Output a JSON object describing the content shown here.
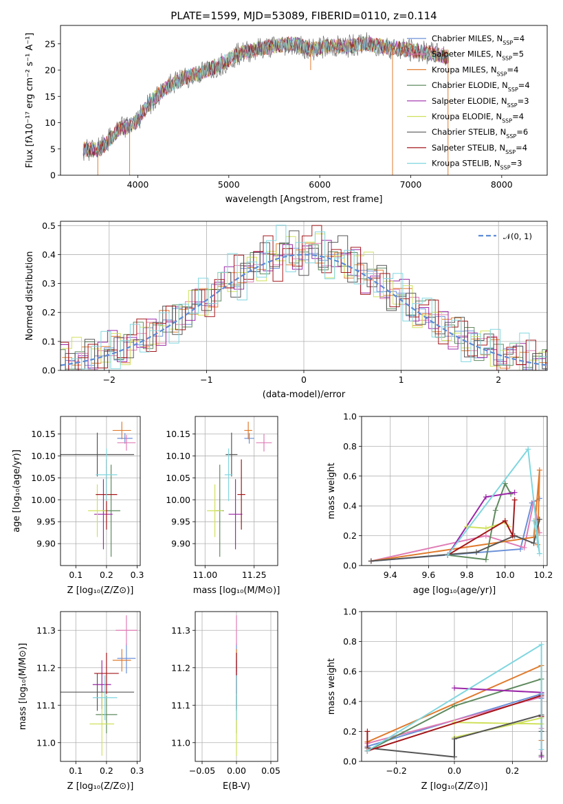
{
  "figure": {
    "title": "PLATE=1599, MJD=53089, FIBERID=0110, z=0.114"
  },
  "colors": {
    "chabrier_miles": "#6a8fd8",
    "salpeter_miles": "#e07bb5",
    "kroupa_miles": "#e07a2c",
    "chabrier_elodie": "#5f8a5f",
    "salpeter_elodie": "#9b27a8",
    "kroupa_elodie": "#cfe05a",
    "chabrier_stelib": "#555555",
    "salpeter_stelib": "#a31518",
    "kroupa_stelib": "#7fd6df"
  },
  "legend_spectrum": [
    {
      "label": "Chabrier MILES, N",
      "sub": "SSP",
      "tail": "=4",
      "color": "#6a8fd8"
    },
    {
      "label": "Salpeter MILES, N",
      "sub": "SSP",
      "tail": "=5",
      "color": "#e07bb5"
    },
    {
      "label": "Kroupa MILES, N",
      "sub": "SSP",
      "tail": "=4",
      "color": "#e07a2c"
    },
    {
      "label": "Chabrier ELODIE, N",
      "sub": "SSP",
      "tail": "=4",
      "color": "#5f8a5f"
    },
    {
      "label": "Salpeter ELODIE, N",
      "sub": "SSP",
      "tail": "=3",
      "color": "#9b27a8"
    },
    {
      "label": "Kroupa ELODIE, N",
      "sub": "SSP",
      "tail": "=4",
      "color": "#cfe05a"
    },
    {
      "label": "Chabrier STELIB, N",
      "sub": "SSP",
      "tail": "=6",
      "color": "#555555"
    },
    {
      "label": "Salpeter STELIB, N",
      "sub": "SSP",
      "tail": "=4",
      "color": "#a31518"
    },
    {
      "label": "Kroupa STELIB, N",
      "sub": "SSP",
      "tail": "=3",
      "color": "#7fd6df"
    }
  ],
  "chart_data": [
    {
      "id": "spectrum",
      "type": "line",
      "title": "PLATE=1599, MJD=53089, FIBERID=0110, z=0.114",
      "xlabel": "wavelength [Angstrom, rest frame]",
      "ylabel": "Flux [fλ10⁻¹⁷ erg cm⁻² s⁻¹ A⁻¹]",
      "xlim": [
        3150,
        8500
      ],
      "ylim": [
        0,
        28.5
      ],
      "xticks": [
        4000,
        5000,
        6000,
        7000,
        8000
      ],
      "yticks": [
        0,
        5,
        10,
        15,
        20,
        25
      ],
      "grid": false,
      "legend": "upper right",
      "continuum": {
        "x": [
          3400,
          3550,
          3600,
          3700,
          3800,
          3900,
          4000,
          4100,
          4200,
          4300,
          4500,
          4700,
          4900,
          5100,
          5300,
          5500,
          5700,
          5900,
          6100,
          6300,
          6500,
          6700,
          6900,
          7100,
          7300,
          7400
        ],
        "y": [
          5.0,
          4.8,
          5.2,
          7.0,
          9.0,
          9.2,
          10.5,
          13.0,
          15.0,
          16.5,
          18.5,
          19.5,
          21.0,
          23.0,
          24.0,
          24.5,
          25.0,
          24.0,
          24.5,
          24.5,
          25.0,
          24.5,
          24.0,
          23.5,
          23.0,
          22.5
        ]
      },
      "dips": [
        {
          "x": 3560,
          "y": 0.0
        },
        {
          "x": 3910,
          "y": 0.0
        },
        {
          "x": 5900,
          "y": 20.0
        },
        {
          "x": 6800,
          "y": 0.0
        },
        {
          "x": 7410,
          "y": 0.0
        }
      ]
    },
    {
      "id": "residuals",
      "type": "histogram",
      "xlabel": "(data-model)/error",
      "ylabel": "Normed distribution",
      "xlim": [
        -2.5,
        2.5
      ],
      "ylim": [
        0,
        0.515
      ],
      "xticks": [
        -2,
        -1,
        0,
        1,
        2
      ],
      "yticks": [
        0.0,
        0.1,
        0.2,
        0.3,
        0.4,
        0.5
      ],
      "grid": true,
      "bin_width": 0.1,
      "amplitude": 0.4,
      "dev": [
        0.01,
        -0.02,
        0.03,
        0.06,
        -0.04,
        0.02,
        0.05,
        -0.03,
        0.01,
        0.04,
        -0.05,
        0.03,
        -0.01,
        0.06,
        -0.02,
        0.04,
        0.07,
        -0.06,
        0.02,
        -0.03,
        0.05,
        0.08,
        -0.04,
        0.03,
        -0.02,
        0.06,
        -0.05,
        0.01,
        0.04,
        -0.03
      ],
      "legend": "upper right",
      "legend_label": "𝒩(0, 1)",
      "legend_color": "#5b8bd8"
    },
    {
      "id": "age_vs_Z",
      "type": "scatter",
      "xlabel": "Z [log₁₀(Z/Z⊙)]",
      "ylabel": "age  [log₁₀(age/yr)]",
      "xlim": [
        0.05,
        0.31
      ],
      "ylim": [
        9.85,
        10.19
      ],
      "xticks": [
        0.1,
        0.2,
        0.3
      ],
      "yticks": [
        9.9,
        9.95,
        10.0,
        10.05,
        10.1,
        10.15
      ],
      "grid": true,
      "points": [
        {
          "key": "chabrier_miles",
          "x": 0.26,
          "y": 10.14,
          "xerr": 0.025,
          "yerr": 0.012
        },
        {
          "key": "salpeter_miles",
          "x": 0.265,
          "y": 10.13,
          "xerr": 0.03,
          "yerr": 0.018
        },
        {
          "key": "kroupa_miles",
          "x": 0.25,
          "y": 10.158,
          "xerr": 0.03,
          "yerr": 0.02
        },
        {
          "key": "chabrier_elodie",
          "x": 0.215,
          "y": 9.975,
          "xerr": 0.03,
          "yerr": 0.105
        },
        {
          "key": "salpeter_elodie",
          "x": 0.19,
          "y": 9.967,
          "xerr": 0.03,
          "yerr": 0.08
        },
        {
          "key": "kroupa_elodie",
          "x": 0.17,
          "y": 9.975,
          "xerr": 0.03,
          "yerr": 0.06
        },
        {
          "key": "chabrier_stelib",
          "x": 0.17,
          "y": 10.103,
          "xerr": 0.12,
          "yerr": 0.05
        },
        {
          "key": "salpeter_stelib",
          "x": 0.2,
          "y": 10.012,
          "xerr": 0.035,
          "yerr": 0.08
        },
        {
          "key": "kroupa_stelib",
          "x": 0.2,
          "y": 10.057,
          "xerr": 0.035,
          "yerr": 0.06
        }
      ]
    },
    {
      "id": "age_vs_mass",
      "type": "scatter",
      "xlabel": "mass [log₁₀(M/M⊙)]",
      "xlim": [
        10.95,
        11.37
      ],
      "ylim": [
        9.85,
        10.19
      ],
      "xticks": [
        11.0,
        11.25
      ],
      "yticks": [
        9.9,
        9.95,
        10.0,
        10.05,
        10.1,
        10.15
      ],
      "grid": true,
      "points": [
        {
          "key": "chabrier_miles",
          "x": 11.225,
          "y": 10.14,
          "xerr": 0.025,
          "yerr": 0.012
        },
        {
          "key": "salpeter_miles",
          "x": 11.3,
          "y": 10.13,
          "xerr": 0.04,
          "yerr": 0.02
        },
        {
          "key": "kroupa_miles",
          "x": 11.22,
          "y": 10.158,
          "xerr": 0.02,
          "yerr": 0.02
        },
        {
          "key": "chabrier_elodie",
          "x": 11.075,
          "y": 9.975,
          "xerr": 0.02,
          "yerr": 0.105
        },
        {
          "key": "salpeter_elodie",
          "x": 11.155,
          "y": 9.967,
          "xerr": 0.035,
          "yerr": 0.08
        },
        {
          "key": "kroupa_elodie",
          "x": 11.05,
          "y": 9.975,
          "xerr": 0.04,
          "yerr": 0.06
        },
        {
          "key": "chabrier_stelib",
          "x": 11.135,
          "y": 10.103,
          "xerr": 0.03,
          "yerr": 0.05
        },
        {
          "key": "salpeter_stelib",
          "x": 11.185,
          "y": 10.012,
          "xerr": 0.02,
          "yerr": 0.08
        },
        {
          "key": "kroupa_stelib",
          "x": 11.12,
          "y": 10.057,
          "xerr": 0.02,
          "yerr": 0.06
        }
      ]
    },
    {
      "id": "mass_weight_vs_age",
      "type": "line",
      "xlabel": "age  [log₁₀(age/yr)]",
      "ylabel": "mass weight",
      "xlim": [
        9.25,
        10.22
      ],
      "ylim": [
        0,
        1.0
      ],
      "xticks": [
        9.4,
        9.6,
        9.8,
        10.0,
        10.2
      ],
      "yticks": [
        0.0,
        0.2,
        0.4,
        0.6,
        0.8,
        1.0
      ],
      "grid": true,
      "series": [
        {
          "key": "chabrier_miles",
          "x": [
            9.3,
            10.08,
            10.14,
            10.18
          ],
          "y": [
            0.03,
            0.11,
            0.42,
            0.45
          ]
        },
        {
          "key": "salpeter_miles",
          "x": [
            9.3,
            9.9,
            10.1,
            10.15,
            10.18
          ],
          "y": [
            0.03,
            0.2,
            0.12,
            0.43,
            0.22
          ]
        },
        {
          "key": "kroupa_miles",
          "x": [
            9.3,
            10.15,
            10.18,
            10.17
          ],
          "y": [
            0.03,
            0.19,
            0.64,
            0.14
          ]
        },
        {
          "key": "chabrier_elodie",
          "x": [
            9.7,
            9.9,
            9.95,
            10.0,
            10.03
          ],
          "y": [
            0.07,
            0.04,
            0.37,
            0.55,
            0.48
          ]
        },
        {
          "key": "salpeter_elodie",
          "x": [
            9.7,
            9.9,
            10.05
          ],
          "y": [
            0.07,
            0.46,
            0.49
          ]
        },
        {
          "key": "kroupa_elodie",
          "x": [
            9.8,
            9.9,
            10.0,
            10.02
          ],
          "y": [
            0.26,
            0.25,
            0.29,
            0.26
          ]
        },
        {
          "key": "chabrier_stelib",
          "x": [
            9.3,
            9.85,
            10.05,
            10.15,
            10.18
          ],
          "y": [
            0.03,
            0.09,
            0.2,
            0.15,
            0.31
          ]
        },
        {
          "key": "salpeter_stelib",
          "x": [
            9.7,
            10.0,
            10.04,
            10.05
          ],
          "y": [
            0.07,
            0.3,
            0.2,
            0.44
          ]
        },
        {
          "key": "kroupa_stelib",
          "x": [
            9.7,
            10.12,
            10.18,
            10.15
          ],
          "y": [
            0.07,
            0.78,
            0.08,
            0.3
          ]
        }
      ]
    },
    {
      "id": "mass_vs_Z",
      "type": "scatter",
      "xlabel": "Z [log₁₀(Z/Z⊙)]",
      "ylabel": "mass [log₁₀(M/M⊙)]",
      "xlim": [
        0.05,
        0.31
      ],
      "ylim": [
        10.95,
        11.35
      ],
      "xticks": [
        0.1,
        0.2,
        0.3
      ],
      "yticks": [
        11.0,
        11.1,
        11.2,
        11.3
      ],
      "grid": true,
      "points": [
        {
          "key": "chabrier_miles",
          "x": 0.265,
          "y": 11.225,
          "xerr": 0.03,
          "yerr": 0.04
        },
        {
          "key": "salpeter_miles",
          "x": 0.265,
          "y": 11.3,
          "xerr": 0.035,
          "yerr": 0.04
        },
        {
          "key": "kroupa_miles",
          "x": 0.25,
          "y": 11.22,
          "xerr": 0.03,
          "yerr": 0.03
        },
        {
          "key": "chabrier_elodie",
          "x": 0.2,
          "y": 11.075,
          "xerr": 0.035,
          "yerr": 0.05
        },
        {
          "key": "salpeter_elodie",
          "x": 0.185,
          "y": 11.155,
          "xerr": 0.03,
          "yerr": 0.065
        },
        {
          "key": "kroupa_elodie",
          "x": 0.185,
          "y": 11.05,
          "xerr": 0.04,
          "yerr": 0.085
        },
        {
          "key": "chabrier_stelib",
          "x": 0.17,
          "y": 11.135,
          "xerr": 0.12,
          "yerr": 0.05
        },
        {
          "key": "salpeter_stelib",
          "x": 0.2,
          "y": 11.185,
          "xerr": 0.04,
          "yerr": 0.055
        },
        {
          "key": "kroupa_stelib",
          "x": 0.195,
          "y": 11.12,
          "xerr": 0.04,
          "yerr": 0.06
        }
      ]
    },
    {
      "id": "mass_vs_ebv",
      "type": "scatter",
      "xlabel": "E(B-V)",
      "xlim": [
        -0.06,
        0.06
      ],
      "ylim": [
        10.95,
        11.35
      ],
      "xticks": [
        -0.05,
        0.0,
        0.05
      ],
      "yticks": [
        11.0,
        11.1,
        11.2,
        11.3
      ],
      "grid": true,
      "points": [
        {
          "key": "chabrier_miles",
          "x": 0.0,
          "y": 11.225,
          "xerr": 0,
          "yerr": 0.04
        },
        {
          "key": "salpeter_miles",
          "x": 0.0,
          "y": 11.3,
          "xerr": 0,
          "yerr": 0.04
        },
        {
          "key": "kroupa_miles",
          "x": 0.0,
          "y": 11.22,
          "xerr": 0,
          "yerr": 0.03
        },
        {
          "key": "chabrier_elodie",
          "x": 0.0,
          "y": 11.075,
          "xerr": 0,
          "yerr": 0.05
        },
        {
          "key": "salpeter_elodie",
          "x": 0.0,
          "y": 11.155,
          "xerr": 0,
          "yerr": 0.065
        },
        {
          "key": "kroupa_elodie",
          "x": 0.0,
          "y": 11.05,
          "xerr": 0,
          "yerr": 0.085
        },
        {
          "key": "chabrier_stelib",
          "x": 0.0,
          "y": 11.135,
          "xerr": 0,
          "yerr": 0.05
        },
        {
          "key": "salpeter_stelib",
          "x": 0.0,
          "y": 11.185,
          "xerr": 0,
          "yerr": 0.055
        },
        {
          "key": "kroupa_stelib",
          "x": 0.0,
          "y": 11.12,
          "xerr": 0,
          "yerr": 0.06
        }
      ]
    },
    {
      "id": "mass_weight_vs_Z",
      "type": "line",
      "xlabel": "Z [log₁₀(Z/Z⊙)]",
      "ylabel": "mass weight",
      "xlim": [
        -0.32,
        0.32
      ],
      "ylim": [
        0,
        1.0
      ],
      "xticks": [
        -0.2,
        0.0,
        0.2
      ],
      "yticks": [
        0.0,
        0.2,
        0.4,
        0.6,
        0.8,
        1.0
      ],
      "grid": true,
      "series": [
        {
          "key": "chabrier_miles",
          "x": [
            -0.3,
            0.3,
            0.3
          ],
          "y": [
            0.1,
            0.45,
            0.42
          ]
        },
        {
          "key": "salpeter_miles",
          "x": [
            -0.3,
            0.3,
            0.3
          ],
          "y": [
            0.12,
            0.43,
            0.22
          ]
        },
        {
          "key": "kroupa_miles",
          "x": [
            -0.3,
            0.3,
            0.3
          ],
          "y": [
            0.13,
            0.64,
            0.14
          ]
        },
        {
          "key": "chabrier_elodie",
          "x": [
            -0.3,
            0.0,
            0.3,
            0.3
          ],
          "y": [
            0.07,
            0.37,
            0.55,
            0.04
          ]
        },
        {
          "key": "salpeter_elodie",
          "x": [
            0.0,
            0.3,
            0.3
          ],
          "y": [
            0.49,
            0.46,
            0.03
          ]
        },
        {
          "key": "kroupa_elodie",
          "x": [
            0.0,
            0.3,
            0.3,
            0.0
          ],
          "y": [
            0.26,
            0.25,
            0.29,
            0.16
          ]
        },
        {
          "key": "chabrier_stelib",
          "x": [
            -0.3,
            0.0,
            0.0,
            0.3,
            0.3
          ],
          "y": [
            0.09,
            0.03,
            0.15,
            0.31,
            0.2
          ]
        },
        {
          "key": "salpeter_stelib",
          "x": [
            -0.3,
            -0.3,
            0.3,
            0.3
          ],
          "y": [
            0.2,
            0.07,
            0.44,
            0.3
          ]
        },
        {
          "key": "kroupa_stelib",
          "x": [
            -0.3,
            0.3,
            0.3
          ],
          "y": [
            0.07,
            0.78,
            0.08
          ]
        }
      ]
    }
  ]
}
